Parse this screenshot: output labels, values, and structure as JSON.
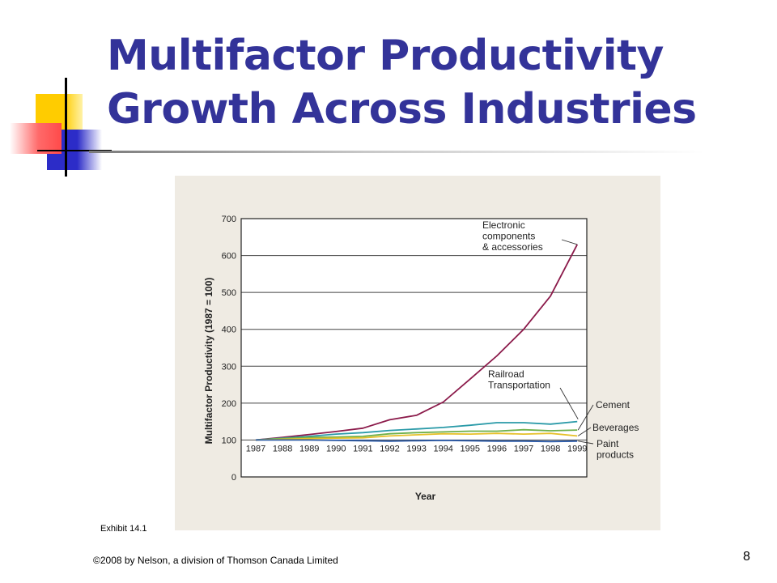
{
  "slide": {
    "title_line1": "Multifactor Productivity",
    "title_line2": "Growth Across Industries",
    "exhibit_label": "Exhibit  14.1",
    "copyright": "©2008 by Nelson, a division of Thomson Canada Limited",
    "page_number": "8"
  },
  "chart_data": {
    "type": "line",
    "title": "",
    "xlabel": "Year",
    "ylabel": "Multifactor Productivity (1987 = 100)",
    "x": [
      "1987",
      "1988",
      "1989",
      "1990",
      "1991",
      "1992",
      "1993",
      "1994",
      "1995",
      "1996",
      "1997",
      "1998",
      "1999"
    ],
    "ylim": [
      0,
      700
    ],
    "yticks": [
      0,
      100,
      200,
      300,
      400,
      500,
      600,
      700
    ],
    "grid": true,
    "series": [
      {
        "name": "Electronic components & accessories",
        "label_lines": [
          "Electronic",
          "components",
          "& accessories"
        ],
        "color": "#8b1a4a",
        "values": [
          100,
          107,
          115,
          123,
          132,
          155,
          167,
          203,
          265,
          328,
          400,
          490,
          630
        ]
      },
      {
        "name": "Railroad Transportation",
        "label_lines": [
          "Railroad",
          "Transportation"
        ],
        "color": "#2a9aa8",
        "values": [
          100,
          105,
          110,
          116,
          120,
          126,
          130,
          134,
          140,
          147,
          147,
          143,
          150
        ]
      },
      {
        "name": "Cement",
        "label_lines": [
          "Cement"
        ],
        "color": "#6fb04a",
        "values": [
          100,
          104,
          107,
          108,
          110,
          117,
          120,
          122,
          124,
          124,
          128,
          125,
          127
        ]
      },
      {
        "name": "Beverages",
        "label_lines": [
          "Beverages"
        ],
        "color": "#e6c029",
        "values": [
          100,
          102,
          104,
          105,
          106,
          111,
          114,
          117,
          116,
          118,
          116,
          118,
          111
        ]
      },
      {
        "name": "Paint products",
        "label_lines": [
          "Paint",
          "products"
        ],
        "color": "#2b5aa8",
        "values": [
          100,
          100,
          100,
          99,
          98,
          97,
          98,
          99,
          98,
          97,
          97,
          96,
          97
        ]
      }
    ]
  }
}
